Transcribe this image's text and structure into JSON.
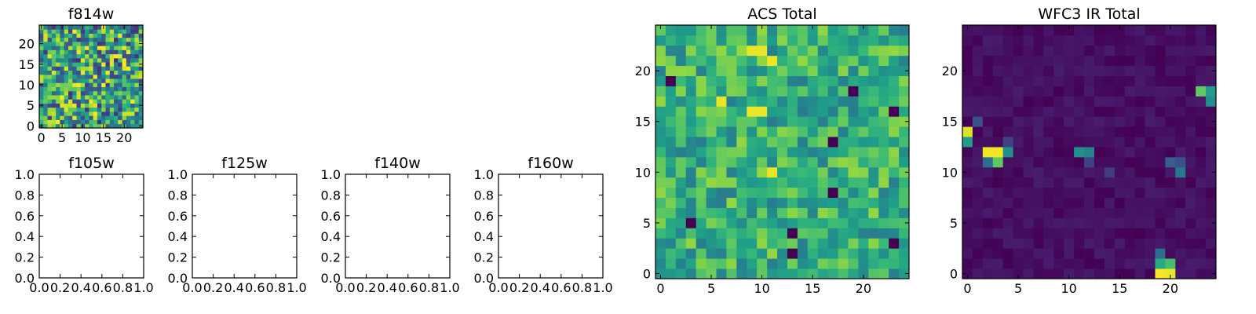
{
  "chart_data": [
    {
      "type": "heatmap",
      "title": "f814w",
      "grid_size": 25,
      "xticks": [
        0,
        5,
        10,
        15,
        20
      ],
      "yticks": [
        0,
        5,
        10,
        15,
        20
      ],
      "xlim": [
        0,
        25
      ],
      "ylim": [
        0,
        25
      ],
      "colormap": "viridis",
      "seed": 3,
      "profile": "noise"
    },
    {
      "type": "heatmap",
      "title": "ACS Total",
      "grid_size": 25,
      "xticks": [
        0,
        5,
        10,
        15,
        20
      ],
      "yticks": [
        0,
        5,
        10,
        15,
        20
      ],
      "xlim": [
        0,
        25
      ],
      "ylim": [
        0,
        25
      ],
      "colormap": "viridis",
      "seed": 11,
      "profile": "acs",
      "dark_cells": [
        [
          3,
          5
        ],
        [
          13,
          4
        ],
        [
          17,
          8
        ],
        [
          17,
          13
        ],
        [
          19,
          18
        ],
        [
          23,
          3
        ],
        [
          23,
          16
        ],
        [
          13,
          2
        ],
        [
          1,
          19
        ]
      ],
      "bright_cells": [
        [
          9,
          16
        ],
        [
          10,
          16
        ],
        [
          6,
          17
        ],
        [
          11,
          10
        ],
        [
          9,
          22
        ],
        [
          10,
          22
        ],
        [
          11,
          21
        ]
      ]
    },
    {
      "type": "heatmap",
      "title": "WFC3 IR Total",
      "grid_size": 25,
      "xticks": [
        0,
        5,
        10,
        15,
        20
      ],
      "yticks": [
        0,
        5,
        10,
        15,
        20
      ],
      "xlim": [
        0,
        25
      ],
      "ylim": [
        0,
        25
      ],
      "colormap": "viridis",
      "seed": 29,
      "profile": "wfc3",
      "hot_cells": [
        [
          0,
          14,
          0.95
        ],
        [
          0,
          13,
          0.55
        ],
        [
          2,
          12,
          0.98
        ],
        [
          3,
          12,
          0.98
        ],
        [
          4,
          12,
          0.5
        ],
        [
          3,
          11,
          0.75
        ],
        [
          2,
          11,
          0.35
        ],
        [
          11,
          12,
          0.5
        ],
        [
          12,
          12,
          0.45
        ],
        [
          12,
          11,
          0.2
        ],
        [
          20,
          11,
          0.3
        ],
        [
          21,
          10,
          0.4
        ],
        [
          21,
          11,
          0.25
        ],
        [
          23,
          18,
          0.75
        ],
        [
          24,
          18,
          0.55
        ],
        [
          24,
          17,
          0.5
        ],
        [
          19,
          1,
          0.6
        ],
        [
          20,
          1,
          0.7
        ],
        [
          19,
          0,
          0.99
        ],
        [
          20,
          0,
          0.97
        ],
        [
          19,
          2,
          0.35
        ],
        [
          1,
          15,
          0.25
        ],
        [
          14,
          10,
          0.18
        ],
        [
          4,
          13,
          0.2
        ]
      ]
    },
    {
      "type": "heatmap",
      "title": "f105w",
      "empty": true,
      "xticks": [
        "0.0",
        "0.2",
        "0.4",
        "0.6",
        "0.8",
        "1.0"
      ],
      "yticks": [
        "0.0",
        "0.2",
        "0.4",
        "0.6",
        "0.8",
        "1.0"
      ],
      "xlim": [
        0,
        1
      ],
      "ylim": [
        0,
        1
      ]
    },
    {
      "type": "heatmap",
      "title": "f125w",
      "empty": true,
      "xticks": [
        "0.0",
        "0.2",
        "0.4",
        "0.6",
        "0.8",
        "1.0"
      ],
      "yticks": [
        "0.0",
        "0.2",
        "0.4",
        "0.6",
        "0.8",
        "1.0"
      ],
      "xlim": [
        0,
        1
      ],
      "ylim": [
        0,
        1
      ]
    },
    {
      "type": "heatmap",
      "title": "f140w",
      "empty": true,
      "xticks": [
        "0.0",
        "0.2",
        "0.4",
        "0.6",
        "0.8",
        "1.0"
      ],
      "yticks": [
        "0.0",
        "0.2",
        "0.4",
        "0.6",
        "0.8",
        "1.0"
      ],
      "xlim": [
        0,
        1
      ],
      "ylim": [
        0,
        1
      ]
    },
    {
      "type": "heatmap",
      "title": "f160w",
      "empty": true,
      "xticks": [
        "0.0",
        "0.2",
        "0.4",
        "0.6",
        "0.8",
        "1.0"
      ],
      "yticks": [
        "0.0",
        "0.2",
        "0.4",
        "0.6",
        "0.8",
        "1.0"
      ],
      "xlim": [
        0,
        1
      ],
      "ylim": [
        0,
        1
      ]
    }
  ]
}
